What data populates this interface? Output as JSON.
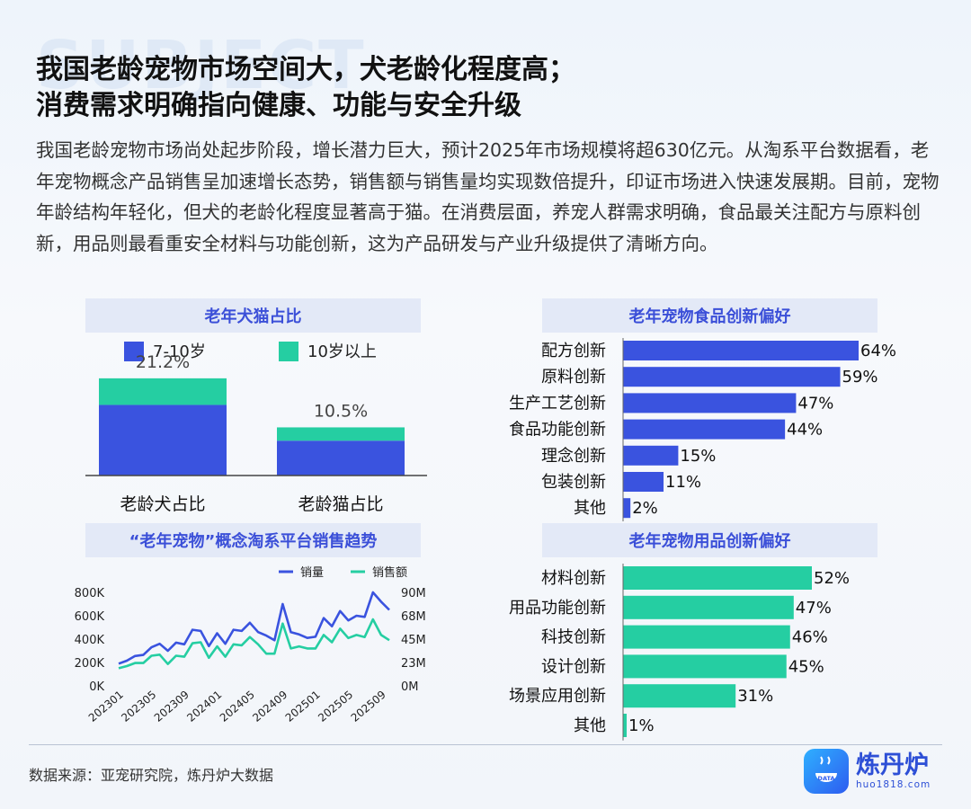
{
  "header": {
    "deco": "SUBJECT",
    "title_line1": "我国老龄宠物市场空间大，犬老龄化程度高；",
    "title_line2": "消费需求明确指向健康、功能与安全升级",
    "intro": "我国老龄宠物市场尚处起步阶段，增长潜力巨大，预计2025年市场规模将超630亿元。从淘系平台数据看，老年宠物概念产品销售呈加速增长态势，销售额与销售量均实现数倍提升，印证市场进入快速发展期。目前，宠物年龄结构年轻化，但犬的老龄化程度显著高于猫。在消费层面，养宠人群需求明确，食品最关注配方与原料创新，用品则最看重安全材料与功能创新，这为产品研发与产业升级提供了清晰方向。"
  },
  "colors": {
    "blue": "#3a53df",
    "green": "#25cea2",
    "head_bg": "#e3e9f7",
    "head_text": "#3b4fd8"
  },
  "chart_data": [
    {
      "type": "bar",
      "stacked": true,
      "title": "老年犬猫占比",
      "categories": [
        "老龄犬占比",
        "老龄猫占比"
      ],
      "series": [
        {
          "name": "7-10岁",
          "color": "#3a53df",
          "values": [
            15.4,
            7.6
          ]
        },
        {
          "name": "10岁以上",
          "color": "#25cea2",
          "values": [
            5.8,
            2.9
          ]
        }
      ],
      "totals_labels": [
        "21.2%",
        "10.5%"
      ],
      "legend": "top"
    },
    {
      "type": "line",
      "title": "“老年宠物”概念淘系平台销售趋势",
      "x": [
        "202301",
        "202302",
        "202303",
        "202304",
        "202305",
        "202306",
        "202307",
        "202308",
        "202309",
        "202310",
        "202311",
        "202312",
        "202401",
        "202402",
        "202403",
        "202404",
        "202405",
        "202406",
        "202407",
        "202408",
        "202409",
        "202410",
        "202411",
        "202412",
        "202501",
        "202502",
        "202503",
        "202504",
        "202505",
        "202506",
        "202507",
        "202508",
        "202509",
        "202510"
      ],
      "xticks": [
        "202301",
        "202305",
        "202309",
        "202401",
        "202405",
        "202409",
        "202501",
        "202505",
        "202509"
      ],
      "series": [
        {
          "name": "销量",
          "axis": "left",
          "color": "#3a53df",
          "values": [
            190000,
            215000,
            255000,
            265000,
            330000,
            360000,
            300000,
            370000,
            355000,
            480000,
            470000,
            340000,
            450000,
            360000,
            480000,
            470000,
            540000,
            460000,
            430000,
            390000,
            700000,
            460000,
            440000,
            410000,
            420000,
            580000,
            510000,
            640000,
            560000,
            600000,
            590000,
            800000,
            720000,
            650000
          ]
        },
        {
          "name": "销售额",
          "axis": "right",
          "color": "#25cea2",
          "values": [
            17000000,
            19000000,
            22000000,
            22000000,
            29000000,
            30000000,
            21000000,
            29000000,
            28000000,
            41000000,
            42000000,
            27000000,
            38000000,
            28000000,
            40000000,
            39000000,
            47000000,
            40000000,
            31000000,
            31000000,
            60000000,
            36000000,
            38000000,
            36000000,
            36000000,
            49000000,
            42000000,
            55000000,
            46000000,
            49000000,
            47000000,
            64000000,
            49000000,
            44000000
          ]
        }
      ],
      "yleft": {
        "ticks": [
          "800K",
          "600K",
          "400K",
          "200K",
          "0K"
        ],
        "ylim": [
          0,
          800000
        ]
      },
      "yright": {
        "ticks": [
          "90M",
          "68M",
          "45M",
          "23M",
          "0M"
        ],
        "ylim": [
          0,
          90000000
        ]
      },
      "legend": "top-right"
    },
    {
      "type": "bar",
      "orientation": "horizontal",
      "title": "老年宠物食品创新偏好",
      "categories": [
        "配方创新",
        "原料创新",
        "生产工艺创新",
        "食品功能创新",
        "理念创新",
        "包装创新",
        "其他"
      ],
      "values": [
        64,
        59,
        47,
        44,
        15,
        11,
        2
      ],
      "labels": [
        "64%",
        "59%",
        "47%",
        "44%",
        "15%",
        "11%",
        "2%"
      ],
      "xlim": [
        0,
        70
      ],
      "color": "#3a53df"
    },
    {
      "type": "bar",
      "orientation": "horizontal",
      "title": "老年宠物用品创新偏好",
      "categories": [
        "材料创新",
        "用品功能创新",
        "科技创新",
        "设计创新",
        "场景应用创新",
        "其他"
      ],
      "values": [
        52,
        47,
        46,
        45,
        31,
        1
      ],
      "labels": [
        "52%",
        "47%",
        "46%",
        "45%",
        "31%",
        "1%"
      ],
      "xlim": [
        0,
        57
      ],
      "color": "#25cea2"
    }
  ],
  "footer": {
    "source": "数据来源：亚宠研究院，炼丹炉大数据",
    "brand_name": "炼丹炉",
    "brand_url": "huo1818.com",
    "logo_text": "DATA"
  }
}
